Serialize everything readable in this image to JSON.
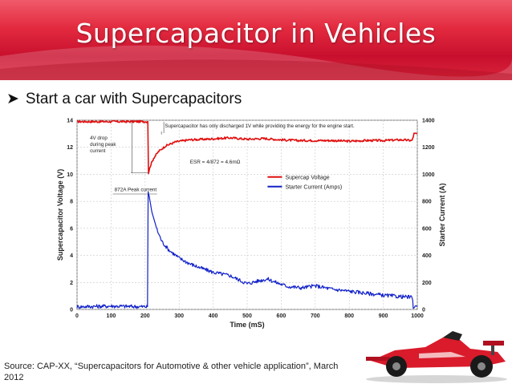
{
  "slide": {
    "title": "Supercapacitor in Vehicles",
    "bullet": "Start a car with Supercapacitors",
    "bullet_icon": "arrow-bullet-icon",
    "source": "Source: CAP-XX, “Supercapacitors for Automotive & other vehicle application”, March 2012",
    "accent_color": "#d9233a"
  },
  "chart_data": {
    "type": "line",
    "xlabel": "Time (mS)",
    "ylabel": "Supercapacitor Voltage (V)",
    "y2label": "Starter Current (A)",
    "xlim": [
      0,
      1000
    ],
    "ylim": [
      0,
      14
    ],
    "y2lim": [
      0,
      1400
    ],
    "x_ticks": [
      0,
      100,
      200,
      300,
      400,
      500,
      600,
      700,
      800,
      900,
      1000
    ],
    "y_ticks": [
      0,
      2,
      4,
      6,
      8,
      10,
      12,
      14
    ],
    "y2_ticks": [
      0,
      200,
      400,
      600,
      800,
      1000,
      1200,
      1400
    ],
    "grid": true,
    "legend": "right",
    "series": [
      {
        "name": "Supercap Voltage",
        "axis": "left",
        "color": "#e01010",
        "x": [
          0,
          100,
          200,
          208,
          210,
          215,
          225,
          240,
          260,
          290,
          330,
          380,
          450,
          500,
          550,
          600,
          650,
          700,
          750,
          800,
          850,
          900,
          950,
          985,
          990,
          1000
        ],
        "y": [
          13.9,
          13.9,
          13.9,
          13.9,
          10.1,
          10.6,
          11.2,
          11.7,
          12.1,
          12.4,
          12.55,
          12.6,
          12.7,
          12.6,
          12.65,
          12.55,
          12.5,
          12.5,
          12.5,
          12.45,
          12.5,
          12.5,
          12.55,
          12.5,
          13.0,
          13.0
        ]
      },
      {
        "name": "Starter Current (Amps)",
        "axis": "right",
        "color": "#1020c8",
        "x": [
          0,
          100,
          200,
          207,
          209,
          212,
          220,
          235,
          250,
          270,
          300,
          330,
          360,
          400,
          450,
          500,
          530,
          560,
          590,
          620,
          660,
          700,
          750,
          800,
          850,
          900,
          950,
          985,
          988,
          1000
        ],
        "y": [
          20,
          25,
          20,
          20,
          872,
          840,
          720,
          590,
          500,
          440,
          380,
          340,
          310,
          275,
          250,
          190,
          210,
          225,
          195,
          170,
          160,
          175,
          150,
          135,
          120,
          105,
          95,
          90,
          20,
          20
        ]
      }
    ],
    "annotations": [
      {
        "text": "Supercapacitor has only discharged 1V while providing the energy for the engine start."
      },
      {
        "text": "4V drop during peak current",
        "lines": [
          "4V drop",
          "during peak",
          "current"
        ]
      },
      {
        "text": "ESR = 4/872 = 4.6mΩ"
      },
      {
        "text": "872A Peak current"
      }
    ]
  }
}
